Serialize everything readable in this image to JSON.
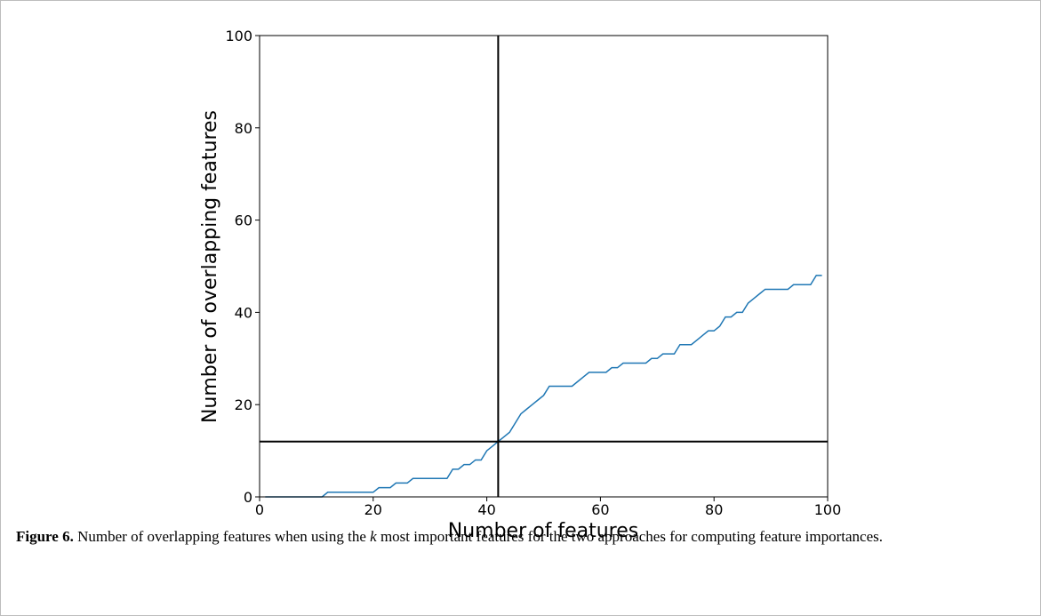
{
  "chart_data": {
    "type": "line",
    "xlabel": "Number of features",
    "ylabel": "Number of overlapping features",
    "x": [
      1,
      2,
      3,
      4,
      5,
      6,
      7,
      8,
      9,
      10,
      11,
      12,
      13,
      14,
      15,
      16,
      17,
      18,
      19,
      20,
      21,
      22,
      23,
      24,
      25,
      26,
      27,
      28,
      29,
      30,
      31,
      32,
      33,
      34,
      35,
      36,
      37,
      38,
      39,
      40,
      41,
      42,
      43,
      44,
      45,
      46,
      47,
      48,
      49,
      50,
      51,
      52,
      53,
      54,
      55,
      56,
      57,
      58,
      59,
      60,
      61,
      62,
      63,
      64,
      65,
      66,
      67,
      68,
      69,
      70,
      71,
      72,
      73,
      74,
      75,
      76,
      77,
      78,
      79,
      80,
      81,
      82,
      83,
      84,
      85,
      86,
      87,
      88,
      89,
      90,
      91,
      92,
      93,
      94,
      95,
      96,
      97,
      98,
      99
    ],
    "series": [
      {
        "color": "#1f77b4",
        "values": [
          0,
          0,
          0,
          0,
          0,
          0,
          0,
          0,
          0,
          0,
          0,
          1,
          1,
          1,
          1,
          1,
          1,
          1,
          1,
          1,
          2,
          2,
          2,
          3,
          3,
          3,
          4,
          4,
          4,
          4,
          4,
          4,
          4,
          6,
          6,
          7,
          7,
          8,
          8,
          10,
          11,
          12,
          13,
          14,
          16,
          18,
          19,
          20,
          21,
          22,
          24,
          24,
          24,
          24,
          24,
          25,
          26,
          27,
          27,
          27,
          27,
          28,
          28,
          29,
          29,
          29,
          29,
          29,
          30,
          30,
          31,
          31,
          31,
          33,
          33,
          33,
          34,
          35,
          36,
          36,
          37,
          39,
          39,
          40,
          40,
          42,
          43,
          44,
          45,
          45,
          45,
          45,
          45,
          46,
          46,
          46,
          46,
          48,
          48
        ]
      }
    ],
    "vline": 42,
    "hline": 12,
    "xlim": [
      0,
      100
    ],
    "ylim": [
      0,
      100
    ],
    "xticks": [
      0,
      20,
      40,
      60,
      80,
      100
    ],
    "yticks": [
      0,
      20,
      40,
      60,
      80,
      100
    ]
  },
  "caption": {
    "label": "Figure 6.",
    "before": " Number of overlapping features when using the ",
    "k": "k",
    "after": " most important features for the two approaches for computing feature importances."
  }
}
